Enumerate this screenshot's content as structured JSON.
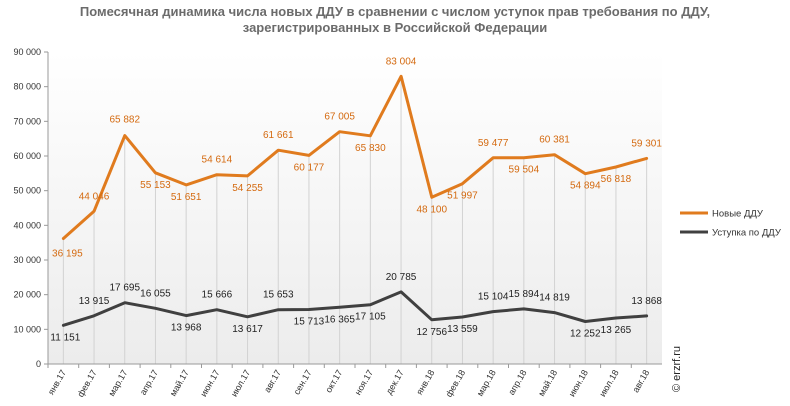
{
  "chart_data": {
    "type": "line",
    "title_lines": [
      "Помесячная динамика числа новых ДДУ в сравнении с числом уступок прав требования по ДДУ,",
      "зарегистрированных в Российской Федерации"
    ],
    "categories": [
      "янв.17",
      "фев.17",
      "мар.17",
      "апр.17",
      "май.17",
      "июн.17",
      "июл.17",
      "авг.17",
      "сен.17",
      "окт.17",
      "ноя.17",
      "дек.17",
      "янв.18",
      "фев.18",
      "мар.18",
      "апр.18",
      "май.18",
      "июн.18",
      "июл.18",
      "авг.18"
    ],
    "y_ticks": [
      "0",
      "10 000",
      "20 000",
      "30 000",
      "40 000",
      "50 000",
      "60 000",
      "70 000",
      "80 000",
      "90 000"
    ],
    "ylim": [
      0,
      90000
    ],
    "grid": false,
    "legend_position": "right",
    "series": [
      {
        "name": "Новые ДДУ",
        "color": "#e07b1e",
        "values": [
          36195,
          44046,
          65882,
          55153,
          51651,
          54614,
          54255,
          61661,
          60177,
          67005,
          65830,
          83004,
          48100,
          51997,
          59477,
          59504,
          60381,
          54894,
          56818,
          59301
        ],
        "labels": [
          "36 195",
          "44 046",
          "65 882",
          "55 153",
          "51 651",
          "54 614",
          "54 255",
          "61 661",
          "60 177",
          "67 005",
          "65 830",
          "83 004",
          "48 100",
          "51 997",
          "59 477",
          "59 504",
          "60 381",
          "54 894",
          "56 818",
          "59 301"
        ]
      },
      {
        "name": "Уступка по ДДУ",
        "color": "#404040",
        "values": [
          11151,
          13915,
          17695,
          16055,
          13968,
          15666,
          13617,
          15653,
          15713,
          16365,
          17105,
          20785,
          12756,
          13559,
          15104,
          15894,
          14819,
          12252,
          13265,
          13868
        ],
        "labels": [
          "11 151",
          "13 915",
          "17 695",
          "16 055",
          "13 968",
          "15 666",
          "13 617",
          "15 653",
          "15 713",
          "16 365",
          "17 105",
          "20 785",
          "12 756",
          "13 559",
          "15 104",
          "15 894",
          "14 819",
          "12 252",
          "13 265",
          "13 868"
        ]
      }
    ],
    "watermark": "© erzrf.ru"
  }
}
